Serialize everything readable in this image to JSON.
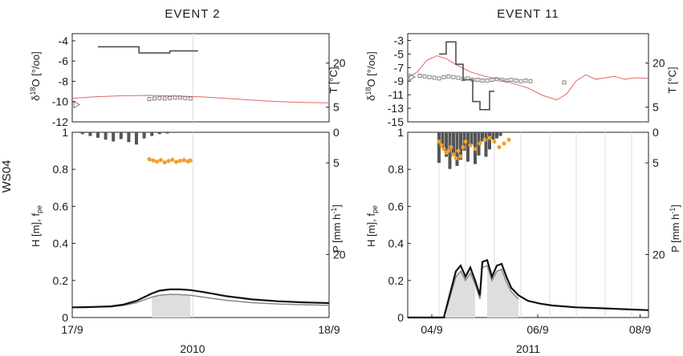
{
  "figure": {
    "row_label": "WS04",
    "left_axis_top": "δ18O [°/oo]",
    "left_axis_bottom": "H [m], fpe",
    "right_axis_top": "T [°C]",
    "right_axis_bottom": "P [mm h-1]"
  },
  "chart_data": [
    {
      "id": "event2",
      "type": "line",
      "title": "EVENT 2",
      "year": "2010",
      "x_ticks": [
        "17/9",
        "18/9"
      ],
      "top": {
        "y_left_ticks": [
          "-4",
          "-6",
          "-8",
          "-10",
          "-12"
        ],
        "ylim_left": [
          -12,
          -3.3
        ],
        "y_right_ticks": [
          "5",
          "20"
        ],
        "ylim_right": [
          0,
          30
        ],
        "rain_d18O_step": [
          [
            0.1,
            -4.6
          ],
          [
            0.26,
            -4.6
          ],
          [
            0.26,
            -5.2
          ],
          [
            0.38,
            -5.2
          ],
          [
            0.38,
            -5.0
          ],
          [
            0.49,
            -5.0
          ]
        ],
        "stream_d18O_points": {
          "x": [
            0.3,
            0.32,
            0.34,
            0.36,
            0.38,
            0.4,
            0.42,
            0.44,
            0.46
          ],
          "y": [
            -9.75,
            -9.7,
            -9.65,
            -9.7,
            -9.65,
            -9.6,
            -9.6,
            -9.65,
            -9.7
          ]
        },
        "temperature": {
          "x": [
            0.0,
            0.05,
            0.1,
            0.2,
            0.3,
            0.4,
            0.5,
            0.6,
            0.7,
            0.8,
            0.9,
            1.0
          ],
          "y": [
            8.0,
            8.3,
            8.6,
            8.9,
            9.0,
            8.8,
            8.5,
            8.0,
            7.4,
            6.9,
            6.6,
            6.5
          ]
        }
      },
      "bottom": {
        "y_left_ticks": [
          "0",
          "0.2",
          "0.4",
          "0.6",
          "0.8",
          "1"
        ],
        "ylim_left": [
          0,
          1
        ],
        "y_right_ticks": [
          "0",
          "5",
          "20"
        ],
        "precip_bars": [
          {
            "x": 0.04,
            "v": 0.3
          },
          {
            "x": 0.07,
            "v": 0.6
          },
          {
            "x": 0.1,
            "v": 0.9
          },
          {
            "x": 0.13,
            "v": 1.2
          },
          {
            "x": 0.16,
            "v": 1.5
          },
          {
            "x": 0.19,
            "v": 1.1
          },
          {
            "x": 0.22,
            "v": 1.6
          },
          {
            "x": 0.25,
            "v": 2.0
          },
          {
            "x": 0.28,
            "v": 1.0
          },
          {
            "x": 0.31,
            "v": 0.6
          },
          {
            "x": 0.34,
            "v": 0.3
          },
          {
            "x": 0.37,
            "v": 0.2
          }
        ],
        "precip_max": 30,
        "fpe_points": {
          "x": [
            0.3,
            0.315,
            0.33,
            0.345,
            0.36,
            0.375,
            0.39,
            0.405,
            0.42,
            0.435,
            0.45,
            0.46
          ],
          "y": [
            0.855,
            0.848,
            0.842,
            0.85,
            0.838,
            0.845,
            0.852,
            0.84,
            0.846,
            0.85,
            0.843,
            0.848
          ]
        },
        "H_total": {
          "x": [
            0.0,
            0.05,
            0.1,
            0.15,
            0.2,
            0.25,
            0.28,
            0.31,
            0.34,
            0.38,
            0.42,
            0.46,
            0.5,
            0.55,
            0.6,
            0.7,
            0.8,
            0.9,
            1.0
          ],
          "y": [
            0.055,
            0.056,
            0.058,
            0.06,
            0.07,
            0.09,
            0.11,
            0.13,
            0.145,
            0.152,
            0.152,
            0.148,
            0.14,
            0.128,
            0.115,
            0.098,
            0.088,
            0.082,
            0.078
          ]
        },
        "H_event": {
          "x": [
            0.0,
            0.05,
            0.1,
            0.15,
            0.2,
            0.25,
            0.28,
            0.31,
            0.34,
            0.38,
            0.42,
            0.46,
            0.5,
            0.55,
            0.6,
            0.7,
            0.8,
            0.9,
            1.0
          ],
          "y": [
            0.055,
            0.056,
            0.057,
            0.058,
            0.065,
            0.08,
            0.095,
            0.11,
            0.12,
            0.125,
            0.124,
            0.12,
            0.112,
            0.102,
            0.093,
            0.08,
            0.073,
            0.069,
            0.066
          ]
        },
        "shade": [
          [
            0.3,
            0.465
          ]
        ]
      }
    },
    {
      "id": "event11",
      "type": "line",
      "title": "EVENT 11",
      "year": "2011",
      "x_ticks": [
        "04/9",
        "06/9",
        "08/9"
      ],
      "top": {
        "y_left_ticks": [
          "-3",
          "-5",
          "-7",
          "-9",
          "-11",
          "-13",
          "-15"
        ],
        "ylim_left": [
          -15,
          -2
        ],
        "y_right_ticks": [
          "5",
          "20"
        ],
        "ylim_right": [
          0,
          30
        ],
        "rain_d18O_step": [
          [
            0.13,
            -5.0
          ],
          [
            0.16,
            -5.0
          ],
          [
            0.16,
            -3.2
          ],
          [
            0.2,
            -3.2
          ],
          [
            0.2,
            -6.5
          ],
          [
            0.23,
            -6.5
          ],
          [
            0.23,
            -8.8
          ],
          [
            0.27,
            -8.8
          ],
          [
            0.27,
            -12.0
          ],
          [
            0.3,
            -12.0
          ],
          [
            0.3,
            -13.2
          ],
          [
            0.34,
            -13.2
          ],
          [
            0.34,
            -10.5
          ],
          [
            0.36,
            -10.5
          ]
        ],
        "stream_d18O_points": {
          "x": [
            0.05,
            0.07,
            0.09,
            0.11,
            0.13,
            0.15,
            0.17,
            0.19,
            0.21,
            0.23,
            0.25,
            0.27,
            0.29,
            0.31,
            0.33,
            0.35,
            0.37,
            0.39,
            0.41,
            0.43,
            0.45,
            0.47,
            0.49,
            0.51,
            0.65
          ],
          "y": [
            -8.2,
            -8.3,
            -8.4,
            -8.5,
            -8.6,
            -8.4,
            -8.3,
            -8.4,
            -8.5,
            -8.7,
            -8.6,
            -8.8,
            -8.8,
            -8.9,
            -8.9,
            -8.8,
            -8.7,
            -8.8,
            -8.9,
            -8.8,
            -8.9,
            -9.0,
            -8.9,
            -9.0,
            -9.2
          ]
        },
        "temperature": {
          "x": [
            0.0,
            0.04,
            0.08,
            0.12,
            0.16,
            0.2,
            0.26,
            0.32,
            0.38,
            0.44,
            0.5,
            0.56,
            0.62,
            0.66,
            0.7,
            0.74,
            0.78,
            0.82,
            0.86,
            0.9,
            0.95,
            1.0
          ],
          "y": [
            15.0,
            17.0,
            21.0,
            22.5,
            21.5,
            19.5,
            17.0,
            15.5,
            14.5,
            13.0,
            11.5,
            9.0,
            7.5,
            9.5,
            14.0,
            16.0,
            14.5,
            15.0,
            15.5,
            14.5,
            15.0,
            14.8
          ]
        }
      },
      "bottom": {
        "y_left_ticks": [
          "0",
          "0.2",
          "0.4",
          "0.6",
          "0.8",
          "1"
        ],
        "ylim_left": [
          0,
          1
        ],
        "y_right_ticks": [
          "0",
          "5",
          "20"
        ],
        "precip_bars": [
          {
            "x": 0.13,
            "v": 5.0
          },
          {
            "x": 0.145,
            "v": 2.5
          },
          {
            "x": 0.16,
            "v": 4.0
          },
          {
            "x": 0.175,
            "v": 6.0
          },
          {
            "x": 0.19,
            "v": 3.5
          },
          {
            "x": 0.205,
            "v": 5.5
          },
          {
            "x": 0.22,
            "v": 4.5
          },
          {
            "x": 0.235,
            "v": 3.0
          },
          {
            "x": 0.25,
            "v": 4.8
          },
          {
            "x": 0.265,
            "v": 2.0
          },
          {
            "x": 0.28,
            "v": 5.2
          },
          {
            "x": 0.295,
            "v": 3.8
          },
          {
            "x": 0.31,
            "v": 1.5
          },
          {
            "x": 0.325,
            "v": 4.0
          },
          {
            "x": 0.34,
            "v": 2.8
          },
          {
            "x": 0.355,
            "v": 1.2
          },
          {
            "x": 0.37,
            "v": 1.0
          },
          {
            "x": 0.385,
            "v": 0.6
          }
        ],
        "precip_max": 30,
        "fpe_points": {
          "x": [
            0.13,
            0.14,
            0.15,
            0.16,
            0.17,
            0.18,
            0.19,
            0.2,
            0.21,
            0.22,
            0.23,
            0.24,
            0.26,
            0.28,
            0.3,
            0.32,
            0.34,
            0.36,
            0.38,
            0.4,
            0.42
          ],
          "y": [
            0.95,
            0.93,
            0.91,
            0.89,
            0.9,
            0.92,
            0.88,
            0.86,
            0.9,
            0.87,
            0.92,
            0.95,
            0.93,
            0.91,
            0.94,
            0.96,
            0.97,
            0.95,
            0.92,
            0.94,
            0.96
          ]
        },
        "H_total": {
          "x": [
            0.0,
            0.1,
            0.15,
            0.16,
            0.18,
            0.2,
            0.22,
            0.24,
            0.26,
            0.28,
            0.3,
            0.31,
            0.33,
            0.35,
            0.37,
            0.39,
            0.41,
            0.43,
            0.46,
            0.5,
            0.55,
            0.6,
            0.7,
            0.8,
            0.9,
            1.0
          ],
          "y": [
            0.0,
            0.0,
            0.0,
            0.05,
            0.15,
            0.25,
            0.28,
            0.22,
            0.27,
            0.2,
            0.12,
            0.3,
            0.31,
            0.22,
            0.28,
            0.29,
            0.22,
            0.16,
            0.12,
            0.09,
            0.075,
            0.065,
            0.055,
            0.05,
            0.045,
            0.04
          ]
        },
        "H_event": {
          "x": [
            0.15,
            0.16,
            0.18,
            0.2,
            0.22,
            0.24,
            0.26,
            0.28,
            0.3,
            0.31,
            0.33,
            0.35,
            0.37,
            0.39,
            0.41,
            0.43,
            0.46
          ],
          "y": [
            0.0,
            0.04,
            0.13,
            0.22,
            0.25,
            0.2,
            0.24,
            0.18,
            0.1,
            0.27,
            0.28,
            0.2,
            0.25,
            0.26,
            0.19,
            0.14,
            0.1
          ]
        },
        "shade": [
          [
            0.16,
            0.29
          ],
          [
            0.32,
            0.53
          ]
        ],
        "vlines": [
          0.13,
          0.24,
          0.36,
          0.47,
          0.59,
          0.7,
          0.82,
          0.93
        ]
      }
    }
  ]
}
